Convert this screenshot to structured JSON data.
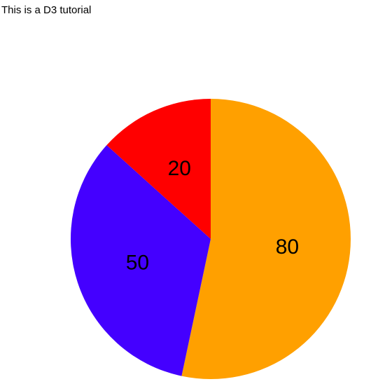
{
  "page": {
    "intro_text": "This is a D3 tutorial"
  },
  "chart_data": {
    "type": "pie",
    "values": [
      80,
      50,
      20
    ],
    "labels": [
      "80",
      "50",
      "20"
    ],
    "colors": [
      "#ffa000",
      "#4400ff",
      "#ff0000"
    ],
    "start": "12 o'clock",
    "direction": "clockwise",
    "legend": "none"
  }
}
